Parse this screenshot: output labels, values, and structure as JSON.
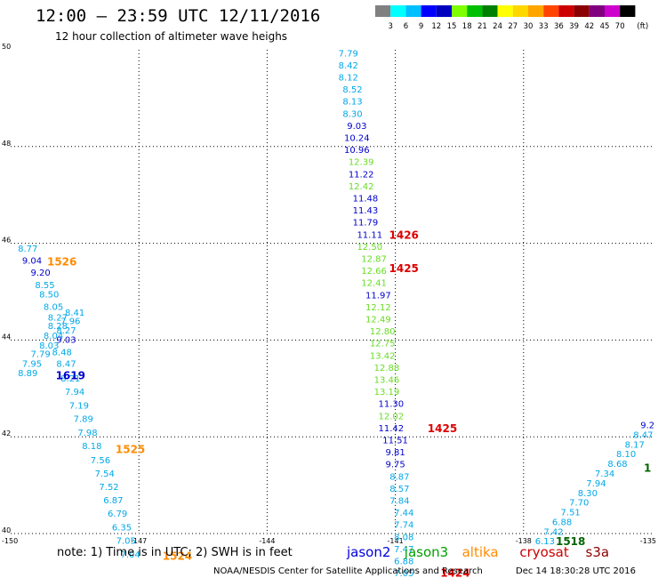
{
  "header": {
    "title": "12:00 — 23:59 UTC 12/11/2016",
    "subtitle": "12 hour collection of altimeter wave heighs"
  },
  "scale": {
    "unit": "(ft)",
    "labels": [
      "3",
      "6",
      "9",
      "12",
      "15",
      "18",
      "21",
      "24",
      "27",
      "30",
      "33",
      "36",
      "39",
      "42",
      "45",
      "70"
    ],
    "colors": [
      "#808080",
      "#00ffff",
      "#00bfff",
      "#0000ff",
      "#0000bf",
      "#7fff00",
      "#00bf00",
      "#008000",
      "#ffff00",
      "#ffd700",
      "#ffa500",
      "#ff4500",
      "#cd0000",
      "#8b0000",
      "#800080",
      "#cd00cd",
      "#000000"
    ]
  },
  "chart_data": {
    "type": "scatter",
    "xlim": [
      -150,
      -135
    ],
    "ylim": [
      40,
      50
    ],
    "x_ticks": [
      "-150",
      "-147",
      "-144",
      "-141",
      "-138",
      "-135"
    ],
    "y_ticks": [
      "40",
      "42",
      "44",
      "46",
      "48",
      "50"
    ],
    "grid": true,
    "tracks": [
      {
        "points": [
          {
            "x": -149.6,
            "y": 45.9,
            "v": "8.77"
          },
          {
            "x": -149.5,
            "y": 45.65,
            "v": "9.04"
          },
          {
            "x": -149.3,
            "y": 45.4,
            "v": "9.20"
          },
          {
            "x": -149.2,
            "y": 45.15,
            "v": "8.55"
          },
          {
            "x": -149.1,
            "y": 44.95,
            "v": "8.50"
          },
          {
            "x": -149.0,
            "y": 44.7,
            "v": "8.05"
          },
          {
            "x": -148.9,
            "y": 44.48,
            "v": "8.27"
          },
          {
            "x": -148.9,
            "y": 44.3,
            "v": "8.28"
          },
          {
            "x": -149.0,
            "y": 44.1,
            "v": "8.04"
          },
          {
            "x": -149.1,
            "y": 43.9,
            "v": "8.03"
          },
          {
            "x": -149.3,
            "y": 43.72,
            "v": "7.79"
          },
          {
            "x": -149.5,
            "y": 43.52,
            "v": "7.95"
          },
          {
            "x": -149.6,
            "y": 43.33,
            "v": "8.89"
          },
          {
            "x": -148.5,
            "y": 44.58,
            "v": "8.41"
          },
          {
            "x": -148.6,
            "y": 44.4,
            "v": "7.96"
          },
          {
            "x": -148.7,
            "y": 44.21,
            "v": "8.27"
          },
          {
            "x": -148.7,
            "y": 44.02,
            "v": "9.03"
          },
          {
            "x": -148.8,
            "y": 43.76,
            "v": "8.48"
          },
          {
            "x": -148.7,
            "y": 43.52,
            "v": "8.47"
          },
          {
            "x": -148.6,
            "y": 43.22,
            "v": "8.21"
          },
          {
            "x": -148.5,
            "y": 42.94,
            "v": "7.94"
          },
          {
            "x": -148.4,
            "y": 42.66,
            "v": "7.19"
          },
          {
            "x": -148.3,
            "y": 42.38,
            "v": "7.89"
          },
          {
            "x": -148.2,
            "y": 42.1,
            "v": "7.98"
          },
          {
            "x": -148.1,
            "y": 41.82,
            "v": "8.18"
          },
          {
            "x": -147.9,
            "y": 41.53,
            "v": "7.56"
          },
          {
            "x": -147.8,
            "y": 41.25,
            "v": "7.54"
          },
          {
            "x": -147.7,
            "y": 40.97,
            "v": "7.52"
          },
          {
            "x": -147.6,
            "y": 40.7,
            "v": "6.87"
          },
          {
            "x": -147.5,
            "y": 40.42,
            "v": "6.79"
          },
          {
            "x": -147.4,
            "y": 40.14,
            "v": "6.35"
          },
          {
            "x": -147.3,
            "y": 39.86,
            "v": "7.05"
          },
          {
            "x": -147.2,
            "y": 39.58,
            "v": "7.04"
          }
        ],
        "times": [
          {
            "x": -148.8,
            "y": 45.63,
            "t": "1526",
            "color": "#ff8c00"
          },
          {
            "x": -148.6,
            "y": 43.28,
            "t": "1619",
            "color": "#0000cd"
          },
          {
            "x": -147.2,
            "y": 41.76,
            "t": "1525",
            "color": "#ff8c00"
          },
          {
            "x": -146.1,
            "y": 39.55,
            "t": "1524",
            "color": "#ff8c00"
          }
        ]
      },
      {
        "points": [
          {
            "x": -142.1,
            "y": 49.94,
            "v": "7.79"
          },
          {
            "x": -142.1,
            "y": 49.69,
            "v": "8.42"
          },
          {
            "x": -142.1,
            "y": 49.44,
            "v": "8.12"
          },
          {
            "x": -142.0,
            "y": 49.19,
            "v": "8.52"
          },
          {
            "x": -142.0,
            "y": 48.94,
            "v": "8.13"
          },
          {
            "x": -142.0,
            "y": 48.69,
            "v": "8.30"
          },
          {
            "x": -141.9,
            "y": 48.44,
            "v": "9.03"
          },
          {
            "x": -141.9,
            "y": 48.19,
            "v": "10.24"
          },
          {
            "x": -141.9,
            "y": 47.94,
            "v": "10.96"
          },
          {
            "x": -141.8,
            "y": 47.69,
            "v": "12.39"
          },
          {
            "x": -141.8,
            "y": 47.44,
            "v": "11.22"
          },
          {
            "x": -141.8,
            "y": 47.19,
            "v": "12.42"
          },
          {
            "x": -141.7,
            "y": 46.94,
            "v": "11.48"
          },
          {
            "x": -141.7,
            "y": 46.69,
            "v": "11.43"
          },
          {
            "x": -141.7,
            "y": 46.44,
            "v": "11.79"
          },
          {
            "x": -141.6,
            "y": 46.19,
            "v": "11.11"
          },
          {
            "x": -141.6,
            "y": 45.94,
            "v": "12.50"
          },
          {
            "x": -141.5,
            "y": 45.69,
            "v": "12.87"
          },
          {
            "x": -141.5,
            "y": 45.44,
            "v": "12.66"
          },
          {
            "x": -141.5,
            "y": 45.19,
            "v": "12.41"
          },
          {
            "x": -141.4,
            "y": 44.94,
            "v": "11.97"
          },
          {
            "x": -141.4,
            "y": 44.69,
            "v": "12.12"
          },
          {
            "x": -141.4,
            "y": 44.44,
            "v": "12.49"
          },
          {
            "x": -141.3,
            "y": 44.19,
            "v": "12.80"
          },
          {
            "x": -141.3,
            "y": 43.94,
            "v": "12.75"
          },
          {
            "x": -141.3,
            "y": 43.69,
            "v": "13.42"
          },
          {
            "x": -141.2,
            "y": 43.44,
            "v": "12.88"
          },
          {
            "x": -141.2,
            "y": 43.19,
            "v": "13.46"
          },
          {
            "x": -141.2,
            "y": 42.94,
            "v": "13.19"
          },
          {
            "x": -141.1,
            "y": 42.69,
            "v": "11.30"
          },
          {
            "x": -141.1,
            "y": 42.44,
            "v": "12.02"
          },
          {
            "x": -141.1,
            "y": 42.19,
            "v": "11.42"
          },
          {
            "x": -141.0,
            "y": 41.94,
            "v": "11.51"
          },
          {
            "x": -141.0,
            "y": 41.69,
            "v": "9.81"
          },
          {
            "x": -141.0,
            "y": 41.44,
            "v": "9.75"
          },
          {
            "x": -140.9,
            "y": 41.19,
            "v": "8.87"
          },
          {
            "x": -140.9,
            "y": 40.94,
            "v": "8.57"
          },
          {
            "x": -140.9,
            "y": 40.69,
            "v": "7.84"
          },
          {
            "x": -140.8,
            "y": 40.44,
            "v": "7.44"
          },
          {
            "x": -140.8,
            "y": 40.19,
            "v": "7.74"
          },
          {
            "x": -140.8,
            "y": 39.94,
            "v": "8.08"
          },
          {
            "x": -140.8,
            "y": 39.69,
            "v": "7.47"
          },
          {
            "x": -140.8,
            "y": 39.44,
            "v": "6.88"
          },
          {
            "x": -140.8,
            "y": 39.19,
            "v": "7.05"
          }
        ],
        "times": [
          {
            "x": -140.8,
            "y": 46.19,
            "t": "1426",
            "color": "#dd0000"
          },
          {
            "x": -140.8,
            "y": 45.5,
            "t": "1425",
            "color": "#dd0000"
          },
          {
            "x": -139.9,
            "y": 42.19,
            "t": "1425",
            "color": "#dd0000"
          },
          {
            "x": -139.6,
            "y": 39.2,
            "t": "1424",
            "color": "#dd0000"
          }
        ]
      },
      {
        "points": [
          {
            "x": -135.1,
            "y": 42.25,
            "v": "9.2"
          },
          {
            "x": -135.2,
            "y": 42.05,
            "v": "8.47"
          },
          {
            "x": -135.4,
            "y": 41.85,
            "v": "8.17"
          },
          {
            "x": -135.6,
            "y": 41.65,
            "v": "8.10"
          },
          {
            "x": -135.8,
            "y": 41.45,
            "v": "8.68"
          },
          {
            "x": -136.1,
            "y": 41.25,
            "v": "7.34"
          },
          {
            "x": -136.3,
            "y": 41.05,
            "v": "7.94"
          },
          {
            "x": -136.5,
            "y": 40.85,
            "v": "8.30"
          },
          {
            "x": -136.7,
            "y": 40.65,
            "v": "7.70"
          },
          {
            "x": -136.9,
            "y": 40.45,
            "v": "7.51"
          },
          {
            "x": -137.1,
            "y": 40.25,
            "v": "6.88"
          },
          {
            "x": -137.3,
            "y": 40.05,
            "v": "7.42"
          },
          {
            "x": -137.5,
            "y": 39.85,
            "v": "6.13"
          }
        ],
        "times": [
          {
            "x": -136.9,
            "y": 39.85,
            "t": "1518",
            "color": "#006400"
          },
          {
            "x": -135.1,
            "y": 41.37,
            "t": "1",
            "color": "#006400"
          }
        ]
      }
    ]
  },
  "footer": {
    "note": "note: 1) Time is in UTC; 2) SWH is in feet",
    "satellites": [
      {
        "name": "jason2",
        "color": "#0000dd"
      },
      {
        "name": "jason3",
        "color": "#00a000"
      },
      {
        "name": "altika",
        "color": "#ff8c00"
      },
      {
        "name": "cryosat",
        "color": "#cc0000"
      },
      {
        "name": "s3a",
        "color": "#8b0000"
      }
    ],
    "credit": "NOAA/NESDIS Center for Satellite Applications and Research",
    "timestamp": "Dec 14 18:30:28 UTC 2016"
  }
}
